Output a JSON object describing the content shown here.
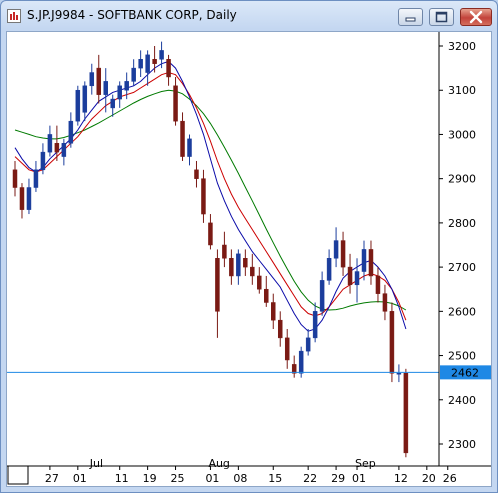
{
  "window": {
    "title": "S.JP.J9984 - SOFTBANK CORP, Daily"
  },
  "chart_data": {
    "type": "candlestick",
    "symbol": "S.JP.J9984",
    "company": "SOFTBANK CORP",
    "interval": "Daily",
    "ylim": [
      2260,
      3230
    ],
    "y_ticks": [
      3200,
      3100,
      3000,
      2900,
      2800,
      2700,
      2600,
      2500,
      2400,
      2300
    ],
    "x_tick_labels": [
      {
        "index": 0,
        "label": "20"
      },
      {
        "index": 5,
        "label": "27"
      },
      {
        "index": 9,
        "label": "01"
      },
      {
        "index": 15,
        "label": "11"
      },
      {
        "index": 19,
        "label": "19"
      },
      {
        "index": 23,
        "label": "25"
      },
      {
        "index": 28,
        "label": "01"
      },
      {
        "index": 32,
        "label": "08"
      },
      {
        "index": 37,
        "label": "15"
      },
      {
        "index": 42,
        "label": "22"
      },
      {
        "index": 46,
        "label": "29"
      },
      {
        "index": 49,
        "label": "01"
      },
      {
        "index": 55,
        "label": "12"
      },
      {
        "index": 59,
        "label": "20"
      },
      {
        "index": 62,
        "label": "26"
      }
    ],
    "month_labels": [
      {
        "index": 11,
        "label": "Jul"
      },
      {
        "index": 28,
        "label": "Aug"
      },
      {
        "index": 49,
        "label": "Sep"
      }
    ],
    "horizontal_line": {
      "value": 2462,
      "label": "2462",
      "color": "#1e88e5"
    },
    "colors": {
      "up_candle": "#1b3d9c",
      "down_candle": "#7a1a14",
      "ma_fast": "#0a0aa8",
      "ma_mid": "#cc0000",
      "ma_slow": "#007a00",
      "price_tag": "#1e88e5"
    },
    "candles": [
      [
        2920,
        2940,
        2860,
        2880
      ],
      [
        2880,
        2890,
        2810,
        2830
      ],
      [
        2830,
        2900,
        2820,
        2880
      ],
      [
        2880,
        2940,
        2870,
        2920
      ],
      [
        2920,
        2980,
        2910,
        2960
      ],
      [
        2960,
        3020,
        2950,
        3000
      ],
      [
        2980,
        3020,
        2940,
        2960
      ],
      [
        2950,
        2990,
        2930,
        2980
      ],
      [
        2980,
        3050,
        2970,
        3030
      ],
      [
        3030,
        3110,
        3020,
        3100
      ],
      [
        3050,
        3120,
        3030,
        3110
      ],
      [
        3110,
        3160,
        3090,
        3140
      ],
      [
        3150,
        3180,
        3070,
        3090
      ],
      [
        3090,
        3150,
        3050,
        3120
      ],
      [
        3060,
        3090,
        3040,
        3080
      ],
      [
        3080,
        3120,
        3060,
        3110
      ],
      [
        3100,
        3140,
        3080,
        3120
      ],
      [
        3120,
        3170,
        3110,
        3150
      ],
      [
        3150,
        3190,
        3130,
        3170
      ],
      [
        3140,
        3190,
        3110,
        3180
      ],
      [
        3170,
        3200,
        3140,
        3160
      ],
      [
        3170,
        3210,
        3150,
        3190
      ],
      [
        3170,
        3180,
        3110,
        3130
      ],
      [
        3110,
        3130,
        3020,
        3030
      ],
      [
        3030,
        3050,
        2940,
        2950
      ],
      [
        2950,
        3000,
        2930,
        2990
      ],
      [
        2920,
        2940,
        2880,
        2900
      ],
      [
        2900,
        2920,
        2800,
        2820
      ],
      [
        2800,
        2820,
        2740,
        2750
      ],
      [
        2720,
        2740,
        2540,
        2600
      ],
      [
        2750,
        2780,
        2700,
        2720
      ],
      [
        2720,
        2740,
        2660,
        2680
      ],
      [
        2680,
        2740,
        2660,
        2730
      ],
      [
        2720,
        2740,
        2680,
        2700
      ],
      [
        2700,
        2730,
        2660,
        2680
      ],
      [
        2680,
        2700,
        2640,
        2650
      ],
      [
        2650,
        2680,
        2610,
        2620
      ],
      [
        2620,
        2640,
        2560,
        2580
      ],
      [
        2580,
        2600,
        2520,
        2540
      ],
      [
        2540,
        2560,
        2470,
        2490
      ],
      [
        2480,
        2500,
        2450,
        2460
      ],
      [
        2460,
        2520,
        2450,
        2510
      ],
      [
        2510,
        2560,
        2500,
        2540
      ],
      [
        2540,
        2620,
        2530,
        2600
      ],
      [
        2600,
        2690,
        2590,
        2670
      ],
      [
        2670,
        2740,
        2660,
        2720
      ],
      [
        2720,
        2790,
        2700,
        2760
      ],
      [
        2760,
        2780,
        2680,
        2700
      ],
      [
        2700,
        2730,
        2640,
        2660
      ],
      [
        2660,
        2720,
        2620,
        2690
      ],
      [
        2690,
        2760,
        2670,
        2740
      ],
      [
        2740,
        2760,
        2660,
        2680
      ],
      [
        2680,
        2700,
        2620,
        2640
      ],
      [
        2640,
        2660,
        2580,
        2600
      ],
      [
        2600,
        2620,
        2440,
        2460
      ],
      [
        2460,
        2480,
        2440,
        2460
      ],
      [
        2460,
        2470,
        2270,
        2280
      ]
    ],
    "ma_fast": [
      2970,
      2945,
      2925,
      2915,
      2925,
      2945,
      2960,
      2975,
      2990,
      3010,
      3035,
      3055,
      3075,
      3085,
      3095,
      3100,
      3105,
      3110,
      3120,
      3135,
      3150,
      3160,
      3165,
      3150,
      3120,
      3085,
      3045,
      3000,
      2945,
      2890,
      2850,
      2815,
      2785,
      2760,
      2735,
      2715,
      2695,
      2675,
      2655,
      2625,
      2595,
      2570,
      2555,
      2560,
      2580,
      2610,
      2645,
      2675,
      2690,
      2700,
      2710,
      2715,
      2700,
      2680,
      2650,
      2610,
      2560
    ],
    "ma_mid": [
      2950,
      2935,
      2920,
      2915,
      2920,
      2935,
      2950,
      2965,
      2980,
      2995,
      3015,
      3035,
      3050,
      3065,
      3075,
      3085,
      3090,
      3095,
      3105,
      3115,
      3125,
      3135,
      3140,
      3135,
      3115,
      3090,
      3060,
      3025,
      2985,
      2940,
      2900,
      2865,
      2835,
      2810,
      2785,
      2760,
      2735,
      2710,
      2685,
      2660,
      2635,
      2610,
      2595,
      2590,
      2595,
      2610,
      2630,
      2650,
      2660,
      2670,
      2680,
      2685,
      2680,
      2670,
      2650,
      2620,
      2580
    ],
    "ma_slow": [
      3010,
      3005,
      3000,
      2995,
      2992,
      2990,
      2990,
      2993,
      2998,
      3004,
      3010,
      3018,
      3026,
      3035,
      3044,
      3053,
      3062,
      3071,
      3079,
      3086,
      3092,
      3097,
      3100,
      3098,
      3092,
      3080,
      3065,
      3047,
      3025,
      2999,
      2971,
      2942,
      2912,
      2881,
      2850,
      2818,
      2786,
      2755,
      2725,
      2696,
      2668,
      2644,
      2625,
      2612,
      2605,
      2603,
      2604,
      2607,
      2612,
      2616,
      2619,
      2621,
      2622,
      2621,
      2618,
      2612,
      2603
    ]
  }
}
